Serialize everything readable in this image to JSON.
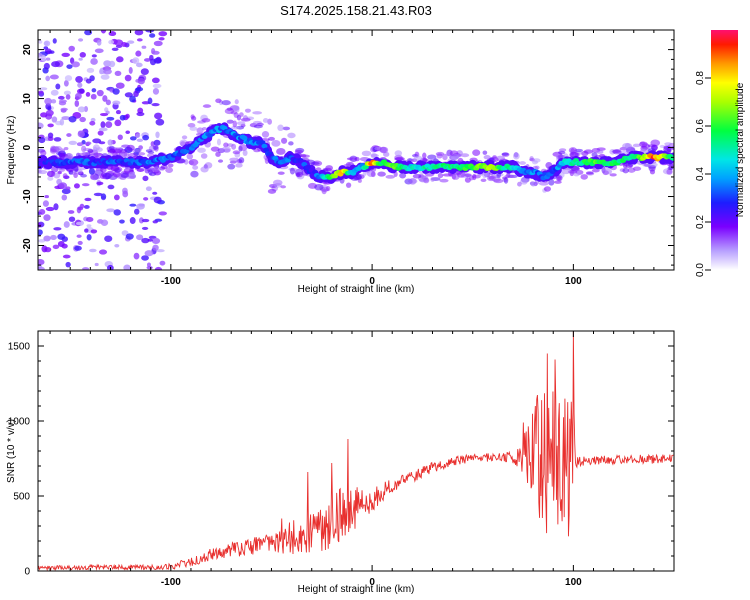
{
  "title": "S174.2025.158.21.43.R03",
  "chart_data": [
    {
      "type": "heatmap",
      "name": "spectrogram",
      "xlabel": "Height of straight line (km)",
      "ylabel": "Frequency (Hz)",
      "xlim": [
        -166,
        150
      ],
      "ylim": [
        -25,
        24
      ],
      "xticks": [
        -100,
        0,
        100
      ],
      "yticks": [
        -20,
        -10,
        0,
        10,
        20
      ],
      "colorbar": {
        "label": "Normalized spectral amplitude",
        "range": [
          0.0,
          1.0
        ],
        "ticks": [
          0.0,
          0.2,
          0.4,
          0.6,
          0.8
        ]
      },
      "ridge": {
        "x": [
          -166,
          -150,
          -130,
          -120,
          -110,
          -100,
          -90,
          -80,
          -75,
          -70,
          -65,
          -60,
          -55,
          -50,
          -45,
          -40,
          -35,
          -30,
          -25,
          -20,
          -15,
          -10,
          -5,
          0,
          5,
          10,
          20,
          30,
          40,
          50,
          60,
          65,
          70,
          75,
          80,
          85,
          90,
          95,
          100,
          110,
          120,
          130,
          140,
          150
        ],
        "freq": [
          -3,
          -3,
          -3,
          -3,
          -3,
          -2,
          0,
          3,
          4,
          3,
          2,
          1,
          1,
          -2,
          -3,
          -2,
          -3,
          -5,
          -6,
          -6,
          -5,
          -5,
          -4,
          -3,
          -3,
          -4,
          -4,
          -4,
          -4,
          -4,
          -4,
          -4,
          -4,
          -5,
          -5,
          -6,
          -5,
          -3,
          -3,
          -3,
          -3,
          -2,
          -2,
          -2
        ],
        "amplitude": [
          0.25,
          0.3,
          0.3,
          0.3,
          0.35,
          0.3,
          0.3,
          0.35,
          0.35,
          0.35,
          0.35,
          0.35,
          0.35,
          0.3,
          0.35,
          0.3,
          0.3,
          0.25,
          0.4,
          0.6,
          0.8,
          0.45,
          0.4,
          0.9,
          0.55,
          0.65,
          0.45,
          0.5,
          0.55,
          0.6,
          0.7,
          0.55,
          0.5,
          0.35,
          0.35,
          0.3,
          0.3,
          0.45,
          0.5,
          0.6,
          0.55,
          0.5,
          0.9,
          0.5
        ]
      }
    },
    {
      "type": "line",
      "name": "snr",
      "xlabel": "Height of straight line (km)",
      "ylabel": "SNR (10 * v/v)",
      "xlim": [
        -166,
        150
      ],
      "ylim": [
        0,
        1600
      ],
      "xticks": [
        -100,
        0,
        100
      ],
      "yticks": [
        0,
        500,
        1000,
        1500
      ],
      "color": "#e8302e",
      "envelope": {
        "x": [
          -166,
          -140,
          -110,
          -100,
          -90,
          -80,
          -70,
          -60,
          -50,
          -40,
          -30,
          -20,
          -10,
          0,
          10,
          20,
          30,
          40,
          50,
          60,
          70,
          75,
          80,
          85,
          90,
          95,
          100,
          101,
          110,
          120,
          130,
          140,
          150
        ],
        "base": [
          20,
          25,
          25,
          30,
          60,
          110,
          140,
          160,
          190,
          220,
          260,
          340,
          410,
          480,
          560,
          630,
          690,
          730,
          750,
          760,
          760,
          765,
          760,
          750,
          740,
          730,
          720,
          730,
          740,
          740,
          745,
          745,
          750
        ],
        "noise": [
          15,
          15,
          15,
          20,
          30,
          40,
          50,
          60,
          80,
          110,
          160,
          200,
          150,
          90,
          60,
          40,
          35,
          30,
          30,
          30,
          35,
          120,
          360,
          500,
          560,
          500,
          600,
          40,
          30,
          30,
          30,
          30,
          30
        ]
      },
      "peaks": [
        {
          "x": -45,
          "y": 350
        },
        {
          "x": -32,
          "y": 660
        },
        {
          "x": -20,
          "y": 720
        },
        {
          "x": -12,
          "y": 880
        },
        {
          "x": 75,
          "y": 990
        },
        {
          "x": 81,
          "y": 1100
        },
        {
          "x": 87,
          "y": 1450
        },
        {
          "x": 91,
          "y": 1410
        },
        {
          "x": 100,
          "y": 1600
        }
      ]
    }
  ]
}
